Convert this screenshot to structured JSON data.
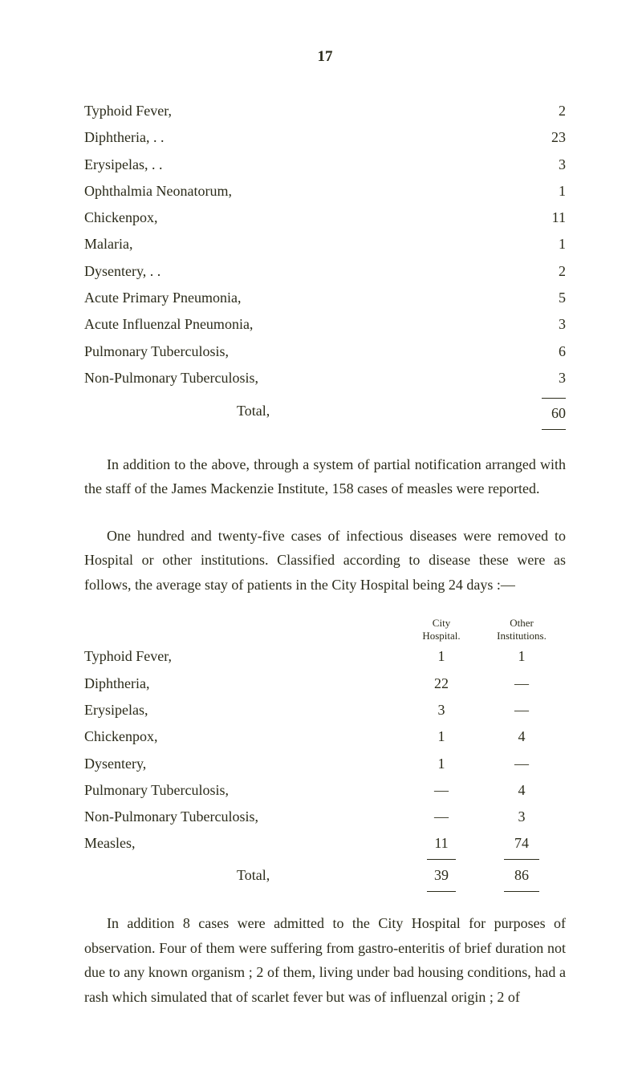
{
  "page_number": "17",
  "disease_list": {
    "rows": [
      {
        "name": "Typhoid Fever,",
        "dots": ". .        . .        . .        . .",
        "value": "2"
      },
      {
        "name": "Diphtheria, . .",
        "dots": ". .        . .        . .        . .",
        "value": "23"
      },
      {
        "name": "Erysipelas, . .",
        "dots": ". .        . .        . .        . .",
        "value": "3"
      },
      {
        "name": "Ophthalmia Neonatorum,",
        "dots": ". .        . .        . .",
        "value": "1"
      },
      {
        "name": "Chickenpox,",
        "dots": ". .        . .        . .        . .",
        "value": "11"
      },
      {
        "name": "Malaria,",
        "dots": ". .        . .        . .        . .        . .",
        "value": "1"
      },
      {
        "name": "Dysentery, . .",
        "dots": ". .        . .        . .        . .",
        "value": "2"
      },
      {
        "name": "Acute Primary Pneumonia,",
        "dots": ". .        . .        . .",
        "value": "5"
      },
      {
        "name": "Acute Influenzal Pneumonia,",
        "dots": ". .        . .        . .",
        "value": "3"
      },
      {
        "name": "Pulmonary Tuberculosis,",
        "dots": ". .        . .        . .",
        "value": "6"
      },
      {
        "name": "Non-Pulmonary Tuberculosis,",
        "dots": ". .        . .        . .",
        "value": "3"
      }
    ],
    "total_label": "Total,",
    "total_value": "60"
  },
  "paragraph1": "In addition to the above, through a system of partial notification arranged with the staff of the James Mackenzie Institute, 158 cases of measles were reported.",
  "paragraph2": "One hundred and twenty-five cases of infectious diseases were removed to Hospital or other institutions. Classified according to disease these were as follows, the average stay of patients in the City Hospital being 24 days :—",
  "table2": {
    "headers": {
      "col2": "City\nHospital.",
      "col3": "Other\nInstitutions."
    },
    "rows": [
      {
        "name": "Typhoid Fever,",
        "city": "1",
        "other": "1"
      },
      {
        "name": "Diphtheria,",
        "city": "22",
        "other": "—"
      },
      {
        "name": "Erysipelas,",
        "city": "3",
        "other": "—"
      },
      {
        "name": "Chickenpox,",
        "city": "1",
        "other": "4"
      },
      {
        "name": "Dysentery,",
        "city": "1",
        "other": "—"
      },
      {
        "name": "Pulmonary Tuberculosis,",
        "city": "—",
        "other": "4"
      },
      {
        "name": "Non-Pulmonary Tuberculosis,",
        "city": "—",
        "other": "3"
      },
      {
        "name": "Measles,",
        "city": "11",
        "other": "74"
      }
    ],
    "total_label": "Total,",
    "total_city": "39",
    "total_other": "86"
  },
  "paragraph3": "In addition 8 cases were admitted to the City Hospital for purposes of observation. Four of them were suffering from gastro-enteritis of brief duration not due to any known organism ; 2 of them, living under bad housing conditions, had a rash which simulated that of scarlet fever but was of influenzal origin ; 2 of"
}
